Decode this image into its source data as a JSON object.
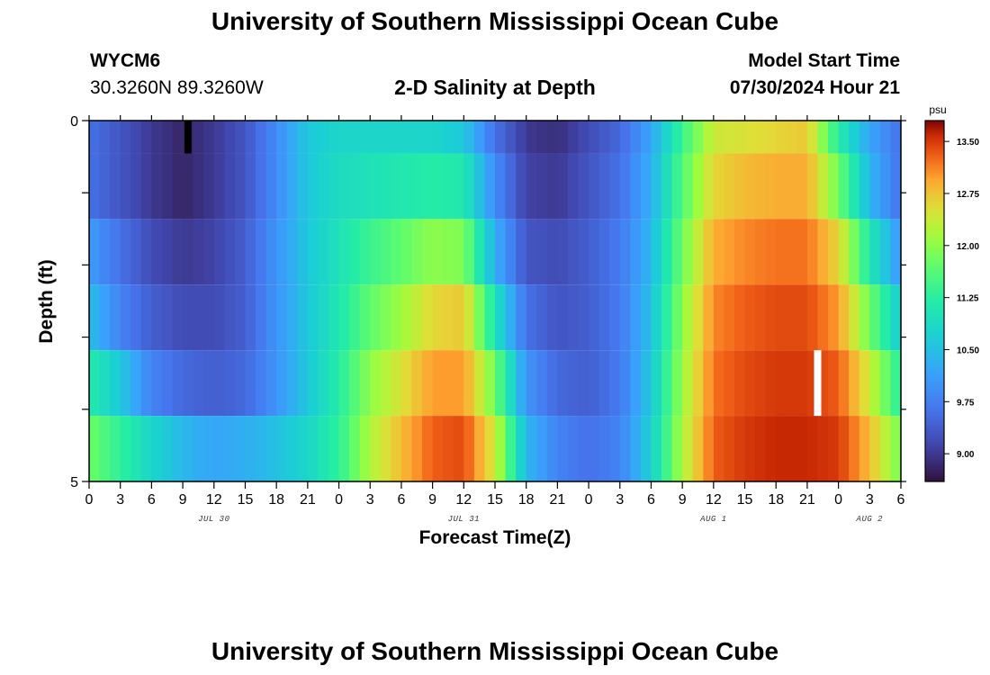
{
  "header": {
    "title": "University of Southern Mississippi Ocean Cube",
    "station": "WYCM6",
    "coords": "30.3260N  89.3260W",
    "subtitle": "2-D Salinity at Depth",
    "model_label": "Model Start Time",
    "model_time": "07/30/2024 Hour 21"
  },
  "footer": {
    "title": "University of Southern Mississippi Ocean Cube"
  },
  "chart_data": {
    "type": "heatmap",
    "title": "2-D Salinity at Depth",
    "xlabel": "Forecast Time(Z)",
    "ylabel": "Depth (ft)",
    "x_tick_labels": [
      "0",
      "3",
      "6",
      "9",
      "12",
      "15",
      "18",
      "21",
      "0",
      "3",
      "6",
      "9",
      "12",
      "15",
      "18",
      "21",
      "0",
      "3",
      "6",
      "9",
      "12",
      "15",
      "18",
      "21",
      "0",
      "3",
      "6"
    ],
    "date_labels": [
      "JUL 30",
      "JUL 31",
      "AUG 1",
      "AUG 2"
    ],
    "x_range_hours": [
      0,
      78
    ],
    "y_tick_labels": [
      "0",
      "5"
    ],
    "ylim": [
      0,
      5
    ],
    "colorbar": {
      "unit": "psu",
      "labels": [
        "13.50",
        "12.75",
        "12.00",
        "11.25",
        "10.50",
        "9.75",
        "9.00"
      ],
      "values": [
        13.5,
        12.75,
        12.0,
        11.25,
        10.5,
        9.75,
        9.0
      ],
      "range": [
        8.6,
        13.8
      ]
    },
    "missing_markers": [
      {
        "hour": 9.5,
        "layer": 0,
        "color": "#000000"
      },
      {
        "hour": 70,
        "layer": 4,
        "color": "#ffffff"
      }
    ],
    "profiles": {
      "hours": [
        0,
        3,
        6,
        9,
        12,
        15,
        18,
        21,
        24,
        27,
        30,
        33,
        36,
        39,
        42,
        45,
        48,
        51,
        54,
        57,
        60,
        63,
        66,
        69,
        72,
        75,
        78
      ],
      "layers": [
        [
          9.6,
          9.3,
          9.0,
          8.8,
          9.0,
          9.3,
          9.9,
          10.6,
          10.8,
          10.8,
          10.8,
          10.8,
          10.6,
          9.6,
          9.0,
          8.9,
          9.2,
          9.5,
          10.2,
          11.4,
          12.4,
          12.5,
          12.6,
          12.7,
          11.2,
          10.2,
          9.6
        ],
        [
          9.6,
          9.3,
          9.0,
          8.8,
          9.0,
          9.3,
          9.9,
          10.6,
          10.9,
          11.0,
          11.1,
          11.2,
          11.1,
          9.9,
          9.1,
          9.0,
          9.3,
          9.6,
          10.3,
          11.6,
          12.6,
          12.8,
          12.9,
          12.9,
          11.8,
          10.4,
          9.6
        ],
        [
          10.1,
          9.6,
          9.2,
          9.0,
          9.1,
          9.4,
          10.0,
          10.6,
          11.0,
          11.4,
          11.7,
          12.0,
          11.9,
          10.3,
          9.3,
          9.2,
          9.4,
          9.7,
          10.4,
          11.8,
          12.9,
          13.1,
          13.2,
          13.2,
          12.6,
          11.1,
          10.0
        ],
        [
          10.5,
          9.8,
          9.4,
          9.2,
          9.2,
          9.4,
          10.0,
          10.6,
          11.1,
          11.7,
          12.1,
          12.6,
          12.7,
          11.0,
          9.6,
          9.3,
          9.4,
          9.7,
          10.5,
          12.0,
          13.1,
          13.3,
          13.4,
          13.4,
          13.0,
          11.8,
          10.6
        ],
        [
          11.2,
          10.6,
          9.8,
          9.5,
          9.4,
          9.5,
          10.0,
          10.6,
          11.2,
          12.0,
          12.5,
          13.0,
          13.0,
          11.8,
          10.0,
          9.5,
          9.4,
          9.7,
          10.6,
          12.1,
          13.2,
          13.4,
          13.5,
          13.5,
          13.3,
          12.4,
          11.2
        ],
        [
          11.8,
          11.3,
          10.8,
          10.4,
          10.2,
          10.3,
          10.5,
          10.8,
          11.3,
          12.2,
          12.8,
          13.3,
          13.4,
          12.4,
          10.4,
          9.8,
          9.6,
          9.8,
          10.7,
          12.2,
          13.3,
          13.5,
          13.6,
          13.6,
          13.5,
          12.8,
          11.8
        ]
      ]
    }
  }
}
